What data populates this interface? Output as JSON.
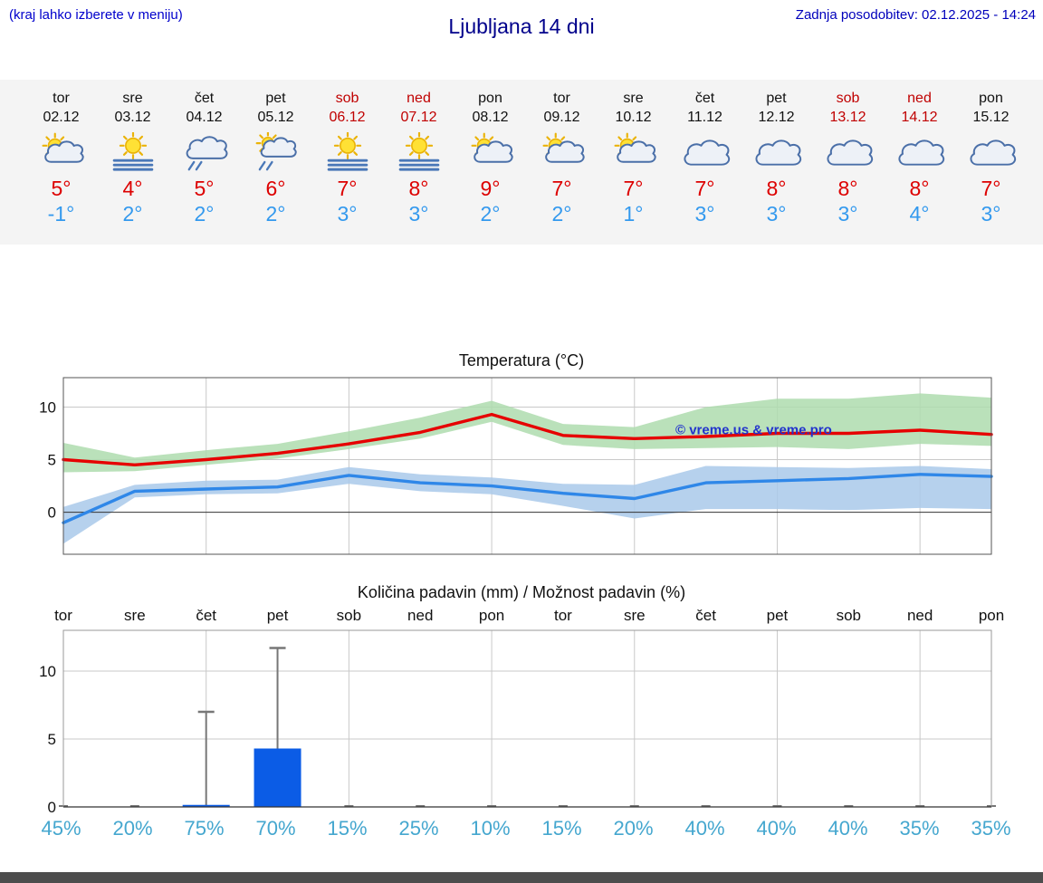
{
  "header": {
    "note": "(kraj lahko izberete v meniju)",
    "title": "Ljubljana 14 dni",
    "updated": "Zadnja posodobitev: 02.12.2025 - 14:24"
  },
  "colors": {
    "note_blue": "#0000cc",
    "title_blue": "#00008b",
    "weekend_red": "#c00000",
    "high_temp_red": "#dd0000",
    "low_temp_blue": "#3399ee",
    "probability_blue": "#45a7cf",
    "strip_bg": "#f4f4f4",
    "footer_gray": "#4d4d4d"
  },
  "forecast": {
    "days": [
      {
        "name": "tor",
        "date": "02.12",
        "weekend": false,
        "icon": "partly-cloudy",
        "high": "5°",
        "low": "-1°"
      },
      {
        "name": "sre",
        "date": "03.12",
        "weekend": false,
        "icon": "sun-fog",
        "high": "4°",
        "low": "2°"
      },
      {
        "name": "čet",
        "date": "04.12",
        "weekend": false,
        "icon": "cloud-fog",
        "high": "5°",
        "low": "2°"
      },
      {
        "name": "pet",
        "date": "05.12",
        "weekend": false,
        "icon": "partly-cloudy-fog",
        "high": "6°",
        "low": "2°"
      },
      {
        "name": "sob",
        "date": "06.12",
        "weekend": true,
        "icon": "sun-fog",
        "high": "7°",
        "low": "3°"
      },
      {
        "name": "ned",
        "date": "07.12",
        "weekend": true,
        "icon": "sun-fog",
        "high": "8°",
        "low": "3°"
      },
      {
        "name": "pon",
        "date": "08.12",
        "weekend": false,
        "icon": "partly-cloudy",
        "high": "9°",
        "low": "2°"
      },
      {
        "name": "tor",
        "date": "09.12",
        "weekend": false,
        "icon": "partly-cloudy",
        "high": "7°",
        "low": "2°"
      },
      {
        "name": "sre",
        "date": "10.12",
        "weekend": false,
        "icon": "partly-cloudy",
        "high": "7°",
        "low": "1°"
      },
      {
        "name": "čet",
        "date": "11.12",
        "weekend": false,
        "icon": "cloudy",
        "high": "7°",
        "low": "3°"
      },
      {
        "name": "pet",
        "date": "12.12",
        "weekend": false,
        "icon": "cloudy",
        "high": "8°",
        "low": "3°"
      },
      {
        "name": "sob",
        "date": "13.12",
        "weekend": true,
        "icon": "cloudy",
        "high": "8°",
        "low": "3°"
      },
      {
        "name": "ned",
        "date": "14.12",
        "weekend": true,
        "icon": "cloudy",
        "high": "8°",
        "low": "4°"
      },
      {
        "name": "pon",
        "date": "15.12",
        "weekend": false,
        "icon": "cloudy",
        "high": "7°",
        "low": "3°"
      }
    ]
  },
  "chart_data": [
    {
      "type": "line",
      "title": "Temperatura (°C)",
      "categories": [
        "tor",
        "sre",
        "čet",
        "pet",
        "sob",
        "ned",
        "pon",
        "tor",
        "sre",
        "čet",
        "pet",
        "sob",
        "ned",
        "pon"
      ],
      "ylim": [
        -4,
        12.8
      ],
      "yticks": [
        0,
        5,
        10
      ],
      "grid": true,
      "watermark": "© vreme.us & vreme.pro",
      "watermark_color": "#2233cc",
      "series": [
        {
          "name": "max-temp",
          "color": "#e60000",
          "values": [
            5.0,
            4.5,
            5.0,
            5.6,
            6.5,
            7.6,
            9.3,
            7.3,
            7.0,
            7.2,
            7.5,
            7.5,
            7.8,
            7.4
          ]
        },
        {
          "name": "min-temp",
          "color": "#2f87e8",
          "values": [
            -1.0,
            2.0,
            2.2,
            2.4,
            3.5,
            2.8,
            2.5,
            1.8,
            1.3,
            2.8,
            3.0,
            3.2,
            3.6,
            3.4
          ]
        }
      ],
      "bands": [
        {
          "name": "max-temp-range",
          "color": "#aedcae",
          "upper": [
            6.6,
            5.2,
            5.9,
            6.5,
            7.7,
            9.0,
            10.6,
            8.4,
            8.1,
            10.0,
            10.8,
            10.8,
            11.3,
            10.9
          ],
          "lower": [
            3.8,
            3.9,
            4.5,
            5.1,
            6.0,
            7.0,
            8.6,
            6.4,
            6.0,
            6.1,
            6.2,
            6.0,
            6.5,
            6.3
          ]
        },
        {
          "name": "min-temp-range",
          "color": "#a9c9ea",
          "upper": [
            0.5,
            2.6,
            3.0,
            3.1,
            4.3,
            3.6,
            3.3,
            2.7,
            2.6,
            4.4,
            4.3,
            4.2,
            4.4,
            4.1
          ],
          "lower": [
            -3.0,
            1.4,
            1.7,
            1.8,
            2.7,
            2.0,
            1.7,
            0.6,
            -0.6,
            0.3,
            0.3,
            0.2,
            0.4,
            0.3
          ]
        }
      ]
    },
    {
      "type": "bar",
      "title": "Količina padavin (mm) / Možnost padavin (%)",
      "categories": [
        "tor",
        "sre",
        "čet",
        "pet",
        "sob",
        "ned",
        "pon",
        "tor",
        "sre",
        "čet",
        "pet",
        "sob",
        "ned",
        "pon"
      ],
      "ylim": [
        0,
        13
      ],
      "yticks": [
        0,
        5,
        10
      ],
      "bar_color": "#0b5ce6",
      "values": [
        0,
        0,
        0.15,
        4.3,
        0,
        0,
        0,
        0,
        0,
        0,
        0,
        0,
        0,
        0
      ],
      "whisker_max": [
        null,
        null,
        7,
        11.7,
        null,
        null,
        null,
        null,
        null,
        null,
        null,
        null,
        null,
        null
      ],
      "probabilities": [
        "45%",
        "20%",
        "75%",
        "70%",
        "15%",
        "25%",
        "10%",
        "15%",
        "20%",
        "40%",
        "40%",
        "40%",
        "35%",
        "35%"
      ]
    }
  ]
}
